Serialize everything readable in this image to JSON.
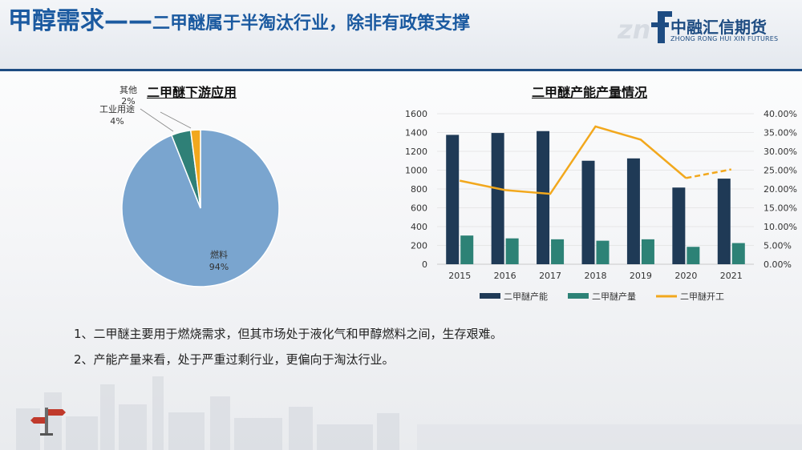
{
  "header": {
    "title_main": "甲醇需求——",
    "title_sub": "二甲醚属于半淘汰行业，除非有政策支撑",
    "logo_cn": "中融汇信期货",
    "logo_en": "ZHONG RONG HUI XIN FUTURES"
  },
  "chart_data": [
    {
      "type": "pie",
      "title": "二甲醚下游应用",
      "slices": [
        {
          "label": "燃料",
          "pct_label": "94%",
          "value": 94,
          "color": "#7aa5cf"
        },
        {
          "label": "工业用途",
          "pct_label": "4%",
          "value": 4,
          "color": "#2f8077"
        },
        {
          "label": "其他",
          "pct_label": "2%",
          "value": 2,
          "color": "#f2a81d"
        }
      ]
    },
    {
      "type": "bar",
      "title": "二甲醚产能产量情况",
      "categories": [
        "2015",
        "2016",
        "2017",
        "2018",
        "2019",
        "2020",
        "2021"
      ],
      "y_ticks": [
        "0",
        "200",
        "400",
        "600",
        "800",
        "1000",
        "1200",
        "1400",
        "1600"
      ],
      "y2_ticks": [
        "0.00%",
        "5.00%",
        "10.00%",
        "15.00%",
        "20.00%",
        "25.00%",
        "30.00%",
        "35.00%",
        "40.00%"
      ],
      "ylim": [
        0,
        1600
      ],
      "y2lim": [
        0,
        40
      ],
      "series": [
        {
          "name": "二甲醚产能",
          "kind": "bar",
          "color": "#1f3a56",
          "values": [
            1375,
            1395,
            1415,
            1100,
            1125,
            815,
            910
          ]
        },
        {
          "name": "二甲醚产量",
          "kind": "bar",
          "color": "#2d8276",
          "values": [
            305,
            275,
            265,
            250,
            265,
            185,
            225
          ]
        },
        {
          "name": "二甲醚开工",
          "kind": "line",
          "color": "#f2a81d",
          "axis": "right",
          "values": [
            22.2,
            19.7,
            18.7,
            36.6,
            33.1,
            22.9,
            25.2
          ],
          "dashed_from_index": 5
        }
      ],
      "legend_position": "bottom"
    }
  ],
  "notes": [
    "1、二甲醚主要用于燃烧需求，但其市场处于液化气和甲醇燃料之间，生存艰难。",
    "2、产能产量来看，处于严重过剩行业，更偏向于淘汰行业。"
  ]
}
